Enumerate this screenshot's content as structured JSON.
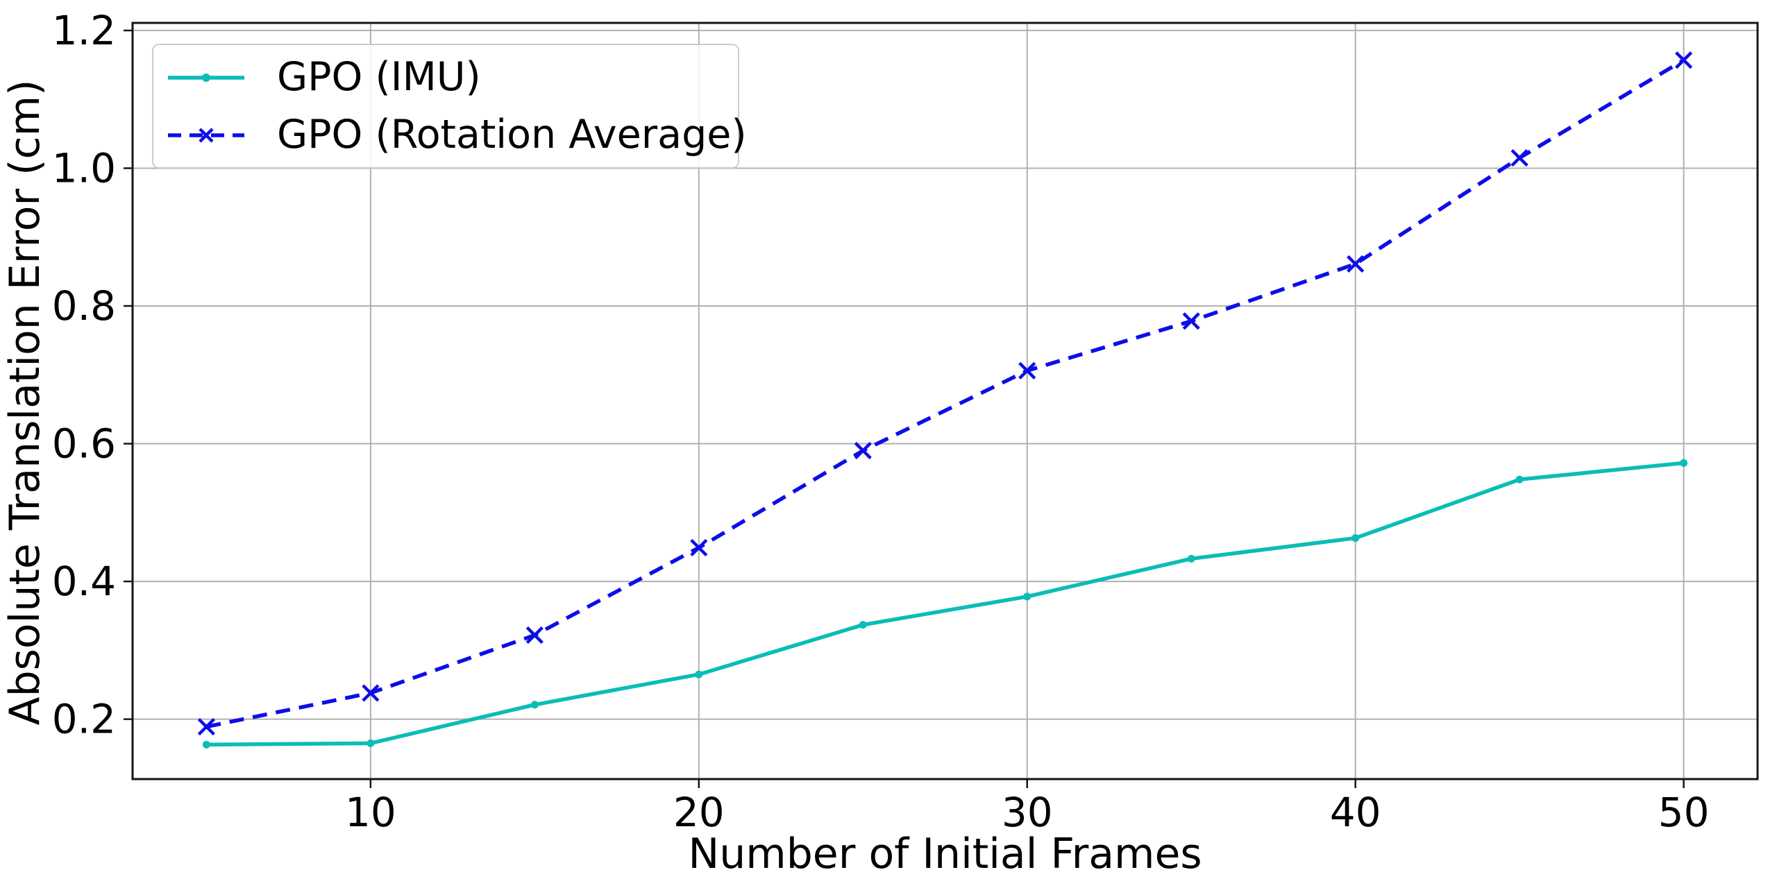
{
  "chart_data": {
    "type": "line",
    "title": "",
    "xlabel": "Number of Initial Frames",
    "ylabel": "Absolute Translation Error (cm)",
    "x": [
      5,
      10,
      15,
      20,
      25,
      30,
      35,
      40,
      45,
      50
    ],
    "series": [
      {
        "name": "GPO (IMU)",
        "color": "#0abdb6",
        "line_style": "solid",
        "marker": "circle",
        "values": [
          0.163,
          0.165,
          0.221,
          0.265,
          0.337,
          0.378,
          0.433,
          0.463,
          0.548,
          0.572
        ]
      },
      {
        "name": "GPO (Rotation Average)",
        "color": "#0d0de8",
        "line_style": "dashed",
        "marker": "x",
        "values": [
          0.189,
          0.238,
          0.322,
          0.449,
          0.59,
          0.706,
          0.778,
          0.861,
          1.015,
          1.157
        ]
      }
    ],
    "xticks": [
      10,
      20,
      30,
      40,
      50
    ],
    "yticks": [
      0.2,
      0.4,
      0.6,
      0.8,
      1.0,
      1.2
    ],
    "xlim": [
      2.75,
      52.25
    ],
    "ylim": [
      0.113,
      1.211
    ],
    "grid": true,
    "grid_color": "#b0b0b0",
    "spine_color": "#151515",
    "legend_position": "upper left"
  }
}
